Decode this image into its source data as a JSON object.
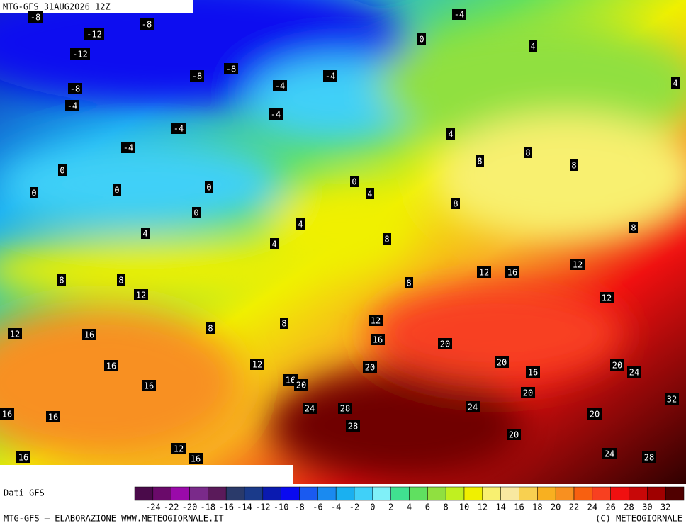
{
  "header": {
    "title": "MTG-GFS 31AUG2026 12Z"
  },
  "map": {
    "labels": [
      -8,
      -8,
      -12,
      -12,
      -8,
      -8,
      -8,
      -4,
      -4,
      -4,
      -4,
      -4,
      -4,
      -4,
      0,
      4,
      4,
      0,
      0,
      0,
      0,
      0,
      0,
      4,
      4,
      8,
      8,
      8,
      8,
      8,
      4,
      4,
      4,
      8,
      8,
      8,
      12,
      8,
      12,
      16,
      12,
      12,
      12,
      16,
      8,
      8,
      12,
      16,
      20,
      16,
      12,
      20,
      20,
      16,
      20,
      24,
      16,
      16,
      20,
      20,
      32,
      16,
      16,
      24,
      28,
      24,
      20,
      28,
      20,
      12,
      24,
      28,
      16,
      16
    ]
  },
  "colorbar": {
    "caption": "Dati GFS",
    "labels": [
      -24,
      -22,
      -20,
      -18,
      -16,
      -14,
      -12,
      -10,
      -8,
      -6,
      -4,
      -2,
      0,
      2,
      4,
      6,
      8,
      10,
      12,
      14,
      16,
      18,
      20,
      22,
      24,
      26,
      28,
      30,
      32
    ],
    "colors": [
      "#4a0a4a",
      "#6a0a6a",
      "#9a0aaa",
      "#7a2a8a",
      "#5a1a5a",
      "#2a3a6a",
      "#1a3a8a",
      "#0a1ab0",
      "#0a0af0",
      "#1a5af0",
      "#1a8af0",
      "#1ab0f0",
      "#40d0f8",
      "#80f0f8",
      "#40e090",
      "#60e060",
      "#90e040",
      "#c0f020",
      "#f0f000",
      "#f8f070",
      "#f8e8a0",
      "#f8d050",
      "#f8b020",
      "#f89020",
      "#f86010",
      "#f84020",
      "#f01010",
      "#c80808",
      "#a00000",
      "#500000"
    ]
  },
  "footer": {
    "left": "MTG-GFS — ELABORAZIONE WWW.METEOGIORNALE.IT",
    "right": "(C) METEOGIORNALE"
  }
}
